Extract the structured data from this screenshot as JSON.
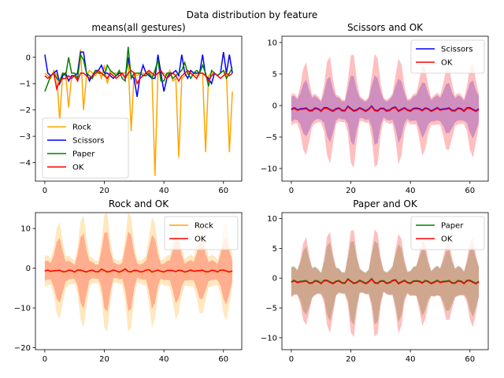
{
  "suptitle": "Data distribution by feature",
  "colors": {
    "Rock": "#ffa500",
    "Scissors": "#0000ff",
    "Paper": "#008000",
    "OK": "#ff0000"
  },
  "chart_data": [
    {
      "type": "line",
      "title": "means(all gestures)",
      "x_range": [
        0,
        63
      ],
      "xlim": [
        -3.15,
        66.15
      ],
      "ylim": [
        -4.7,
        0.8
      ],
      "xticks": [
        0,
        20,
        40,
        60
      ],
      "yticks": [
        0,
        -1,
        -2,
        -3,
        -4
      ],
      "legend_position": "lower-left",
      "series": [
        {
          "name": "Rock",
          "values": [
            -0.6,
            -0.7,
            -0.8,
            -0.5,
            -0.7,
            -2.4,
            -0.6,
            -0.6,
            -1.9,
            -0.7,
            -0.7,
            -0.6,
            0.3,
            -2.0,
            -0.7,
            -0.5,
            -0.6,
            -0.7,
            -0.5,
            -0.8,
            -0.3,
            -1.0,
            -0.5,
            -0.6,
            -0.6,
            -0.7,
            -0.6,
            -0.6,
            -0.2,
            -2.8,
            -0.6,
            -0.7,
            -0.6,
            -0.6,
            -0.7,
            -0.5,
            -0.7,
            -4.5,
            -0.6,
            -0.6,
            -0.6,
            -0.7,
            -0.5,
            -0.9,
            -0.8,
            -3.8,
            -0.8,
            -0.7,
            -0.6,
            -0.5,
            -0.6,
            -0.7,
            -0.6,
            -0.6,
            -3.6,
            -0.7,
            -0.6,
            -0.6,
            -0.7,
            -0.6,
            -0.5,
            -0.6,
            -3.6,
            -1.3
          ]
        },
        {
          "name": "Scissors",
          "values": [
            0.1,
            -0.6,
            -0.7,
            -0.6,
            -0.5,
            -1.0,
            -0.7,
            -0.6,
            -0.9,
            -0.7,
            -0.7,
            -0.6,
            0.2,
            0.2,
            -0.6,
            -0.9,
            -0.7,
            -0.5,
            -0.5,
            -0.3,
            -0.6,
            -0.6,
            -0.7,
            -0.8,
            -0.7,
            -0.6,
            -0.6,
            -0.8,
            0.0,
            -0.7,
            -0.8,
            -1.5,
            -0.7,
            -0.3,
            -0.6,
            -0.7,
            -0.8,
            -0.8,
            0.1,
            -0.6,
            -1.3,
            -0.8,
            -0.6,
            -0.6,
            -0.5,
            -0.7,
            0.1,
            -0.6,
            -0.8,
            -0.5,
            -0.6,
            -0.6,
            -0.6,
            0.1,
            -0.7,
            -0.8,
            -1.0,
            -0.6,
            -0.7,
            -0.6,
            0.2,
            -0.6,
            0.1,
            -0.6
          ]
        },
        {
          "name": "Paper",
          "values": [
            -1.3,
            -1.0,
            -0.7,
            -0.6,
            -0.8,
            -0.9,
            -0.6,
            -0.7,
            0.0,
            -0.6,
            -0.6,
            -0.8,
            0.1,
            -0.1,
            -0.6,
            -0.7,
            -0.8,
            -0.5,
            -0.6,
            -0.6,
            -0.7,
            -0.3,
            -0.5,
            -0.6,
            -0.7,
            -0.5,
            -0.8,
            -0.9,
            0.4,
            -0.8,
            -0.6,
            -0.6,
            -0.6,
            -0.7,
            -0.7,
            -0.6,
            -0.8,
            -0.5,
            -0.1,
            -0.9,
            -0.9,
            -0.6,
            -0.6,
            -0.8,
            -0.7,
            -0.6,
            -0.5,
            -0.2,
            -0.6,
            -0.8,
            -0.6,
            -0.5,
            -0.6,
            -0.3,
            -0.6,
            -1.1,
            -0.5,
            -0.6,
            -0.7,
            -0.6,
            -0.5,
            -0.8,
            -0.6,
            -0.4
          ]
        },
        {
          "name": "OK",
          "values": [
            -0.7,
            -0.8,
            -0.7,
            -0.6,
            -1.2,
            -0.9,
            -0.8,
            -0.8,
            -0.7,
            -0.8,
            -0.7,
            -0.9,
            -0.6,
            -0.6,
            -0.7,
            -0.8,
            -0.7,
            -0.6,
            -0.5,
            -0.6,
            -0.7,
            -0.8,
            -0.6,
            -0.7,
            -0.8,
            -0.7,
            -0.6,
            -0.8,
            -0.6,
            -0.5,
            -0.6,
            -1.0,
            -0.8,
            -0.7,
            -0.6,
            -0.5,
            -0.6,
            -0.7,
            -0.6,
            -0.5,
            -0.7,
            -0.8,
            -0.7,
            -0.6,
            -0.7,
            -0.9,
            -0.7,
            -0.6,
            -0.5,
            -0.6,
            -0.7,
            -0.8,
            -0.6,
            -0.6,
            -0.7,
            -0.9,
            -0.7,
            -0.6,
            -0.7,
            -0.8,
            -0.7,
            -0.6,
            -0.7,
            -0.6
          ]
        }
      ]
    },
    {
      "type": "area",
      "title": "Scissors and OK",
      "x_range": [
        0,
        63
      ],
      "xlim": [
        -3.15,
        66.15
      ],
      "ylim": [
        -12.0,
        11.0
      ],
      "xticks": [
        0,
        20,
        40,
        60
      ],
      "yticks": [
        10,
        5,
        0,
        -5,
        -10
      ],
      "legend_position": "top-right",
      "band_pattern": {
        "period": 8,
        "spike_phases": [
          4,
          5
        ]
      },
      "series": [
        {
          "name": "Scissors",
          "mean": -0.6,
          "band_base": 2.0,
          "band_peak": 5.5
        },
        {
          "name": "OK",
          "mean": -0.7,
          "band_base": 2.5,
          "band_peak": 9.0
        }
      ]
    },
    {
      "type": "area",
      "title": "Rock and OK",
      "x_range": [
        0,
        63
      ],
      "xlim": [
        -3.15,
        66.15
      ],
      "ylim": [
        -20.5,
        14.0
      ],
      "xticks": [
        0,
        20,
        40,
        60
      ],
      "yticks": [
        10,
        0,
        -10,
        -20
      ],
      "legend_position": "top-right",
      "band_pattern": {
        "period": 8,
        "spike_phases": [
          4,
          5
        ]
      },
      "series": [
        {
          "name": "Rock",
          "mean": -0.8,
          "band_base": 4.0,
          "band_peak": 15.0
        },
        {
          "name": "OK",
          "mean": -0.7,
          "band_base": 2.5,
          "band_peak": 10.0
        }
      ]
    },
    {
      "type": "area",
      "title": "Paper and OK",
      "x_range": [
        0,
        63
      ],
      "xlim": [
        -3.15,
        66.15
      ],
      "ylim": [
        -12.0,
        11.0
      ],
      "xticks": [
        0,
        20,
        40,
        60
      ],
      "yticks": [
        10,
        5,
        0,
        -5,
        -10
      ],
      "legend_position": "top-right",
      "band_pattern": {
        "period": 8,
        "spike_phases": [
          4,
          5
        ]
      },
      "series": [
        {
          "name": "Paper",
          "mean": -0.6,
          "band_base": 2.5,
          "band_peak": 7.0
        },
        {
          "name": "OK",
          "mean": -0.7,
          "band_base": 2.5,
          "band_peak": 9.0
        }
      ]
    }
  ]
}
